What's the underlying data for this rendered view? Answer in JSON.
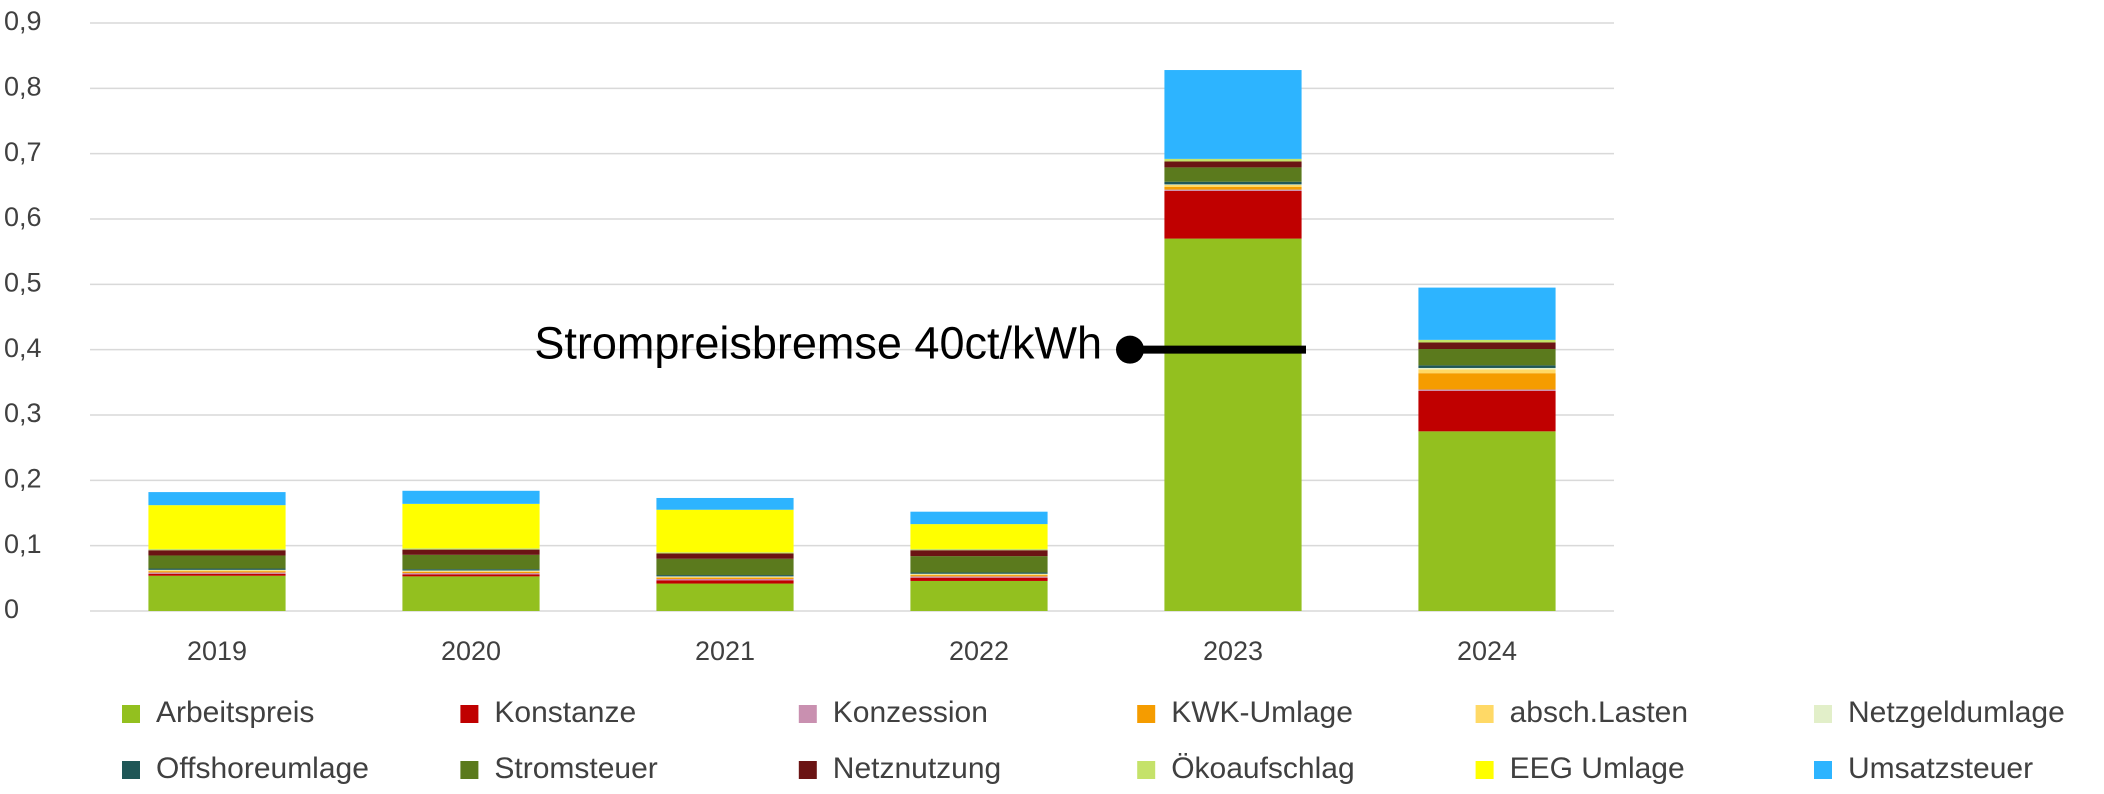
{
  "chart_data": {
    "type": "stacked_bar",
    "categories": [
      "2019",
      "2020",
      "2021",
      "2022",
      "2023",
      "2024"
    ],
    "series": [
      {
        "name": "Arbeitspreis",
        "color": "#93c01f",
        "values": [
          0.054,
          0.053,
          0.042,
          0.046,
          0.57,
          0.275
        ]
      },
      {
        "name": "Konstanze",
        "color": "#c00000",
        "values": [
          0.003,
          0.003,
          0.005,
          0.005,
          0.073,
          0.062
        ]
      },
      {
        "name": "Konzession",
        "color": "#c990b0",
        "values": [
          0.002,
          0.002,
          0.002,
          0.002,
          0.002,
          0.002
        ]
      },
      {
        "name": "KWK-Umlage",
        "color": "#f59c00",
        "values": [
          0.002,
          0.002,
          0.002,
          0.002,
          0.004,
          0.025
        ]
      },
      {
        "name": "absch.Lasten",
        "color": "#ffd966",
        "values": [
          0.001,
          0.001,
          0.001,
          0.001,
          0.003,
          0.006
        ]
      },
      {
        "name": "Netzgeldumlage",
        "color": "#e2efc9",
        "values": [
          0.001,
          0.001,
          0.001,
          0.001,
          0.001,
          0.002
        ]
      },
      {
        "name": "Offshoreumlage",
        "color": "#1f5757",
        "values": [
          0.002,
          0.002,
          0.002,
          0.002,
          0.004,
          0.004
        ]
      },
      {
        "name": "Stromsteuer",
        "color": "#5b7a1d",
        "values": [
          0.02,
          0.022,
          0.025,
          0.025,
          0.022,
          0.025
        ]
      },
      {
        "name": "Netznutzung",
        "color": "#6b1414",
        "values": [
          0.008,
          0.008,
          0.008,
          0.009,
          0.009,
          0.01
        ]
      },
      {
        "name": "Ökoaufschlag",
        "color": "#c5e26a",
        "values": [
          0.002,
          0.002,
          0.002,
          0.002,
          0.004,
          0.004
        ]
      },
      {
        "name": "EEG Umlage",
        "color": "#ffff00",
        "values": [
          0.067,
          0.068,
          0.065,
          0.038,
          0,
          0
        ]
      },
      {
        "name": "Umsatzsteuer",
        "color": "#2db4ff",
        "values": [
          0.02,
          0.02,
          0.018,
          0.019,
          0.136,
          0.08
        ]
      }
    ],
    "ylim": [
      0,
      0.9
    ],
    "yticks": [
      0,
      {
        "value": 0.1,
        "label": "0,1"
      },
      {
        "value": 0.2,
        "label": "0,2"
      },
      {
        "value": 0.3,
        "label": "0,3"
      },
      {
        "value": 0.4,
        "label": "0,4"
      },
      {
        "value": 0.5,
        "label": "0,5"
      },
      {
        "value": 0.6,
        "label": "0,6"
      },
      {
        "value": 0.7,
        "label": "0,7"
      },
      {
        "value": 0.8,
        "label": "0,8"
      },
      {
        "value": 0.9,
        "label": "0,9"
      }
    ],
    "grid": true,
    "annotation": {
      "text": "Strompreisbremse 40ct/kWh",
      "value": 0.4
    }
  }
}
